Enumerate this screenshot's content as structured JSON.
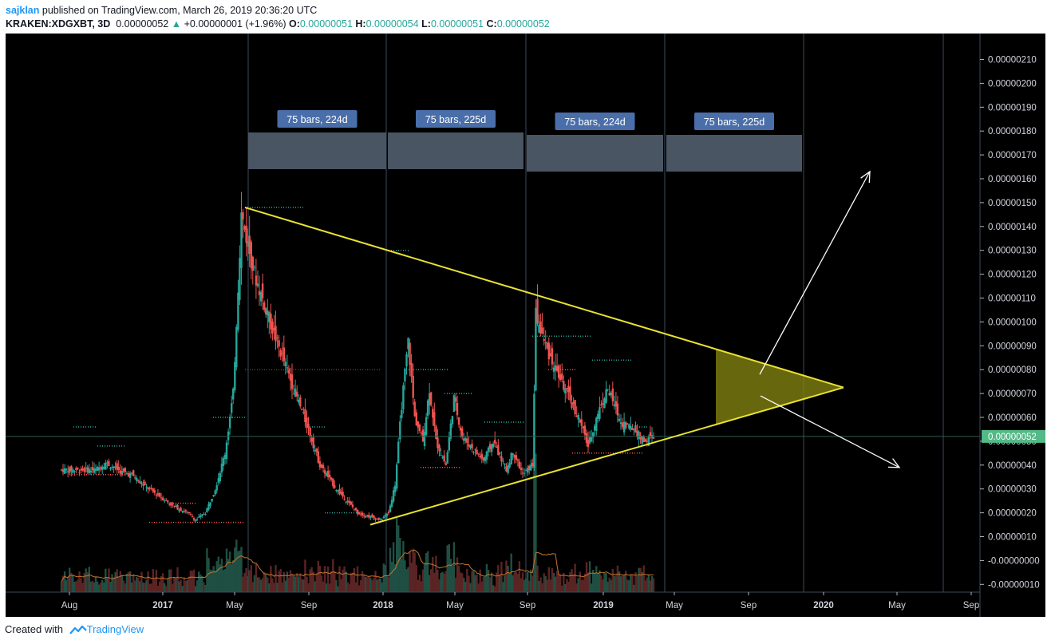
{
  "header": {
    "author": "sajklan",
    "published": "published on TradingView.com, March 26, 2019 20:36:20 UTC",
    "symbol": "KRAKEN:XDGXBT, 3D",
    "last": "0.00000052",
    "change": "+0.00000001 (+1.96%)",
    "o_label": "O:",
    "o": "0.00000051",
    "h_label": "H:",
    "h": "0.00000054",
    "l_label": "L:",
    "l": "0.00000051",
    "c_label": "C:",
    "c": "0.00000052"
  },
  "footer": {
    "created": "Created with",
    "brand": "TradingView"
  },
  "colors": {
    "background": "#000000",
    "up": "#26a69a",
    "down": "#ef5350",
    "trendline": "#e8e233",
    "wedge_fill": "#8a8a12",
    "price_tag": "#53b987",
    "box": "#4a5563",
    "box_label": "#4a6ea9",
    "arrow": "#ffffff",
    "ma": "#c8742b"
  },
  "chart_data": {
    "type": "candlestick",
    "ylim": [
      -2e-07,
      2.1e-06
    ],
    "y_ticks": [
      "0.00000210",
      "0.00000200",
      "0.00000190",
      "0.00000180",
      "0.00000170",
      "0.00000160",
      "0.00000150",
      "0.00000140",
      "0.00000130",
      "0.00000120",
      "0.00000110",
      "0.00000100",
      "0.00000090",
      "0.00000080",
      "0.00000070",
      "0.00000060",
      "0.00000050",
      "0.00000040",
      "0.00000030",
      "0.00000020",
      "0.00000010",
      "-0.00000000",
      "-0.00000010"
    ],
    "x_ticks": [
      "Aug",
      "2017",
      "May",
      "Sep",
      "2018",
      "May",
      "Sep",
      "2019",
      "May",
      "Sep",
      "2020",
      "May",
      "Sep"
    ],
    "current_price": "0.00000052",
    "price_path": [
      [
        3.8e-07,
        22
      ],
      [
        4.1e-07,
        6
      ],
      [
        3.7e-07,
        10
      ],
      [
        3.6e-07,
        6
      ],
      [
        3.1e-07,
        8
      ],
      [
        2.7e-07,
        9
      ],
      [
        2.3e-07,
        8
      ],
      [
        2e-07,
        9
      ],
      [
        1.7e-07,
        5
      ],
      [
        2e-07,
        6
      ],
      [
        3e-07,
        6
      ],
      [
        4.5e-07,
        6
      ],
      [
        7e-07,
        5
      ],
      [
        1.45e-06,
        5
      ],
      [
        1.2e-06,
        8
      ],
      [
        9.5e-07,
        12
      ],
      [
        7.2e-07,
        12
      ],
      [
        5.5e-07,
        9
      ],
      [
        4e-07,
        7
      ],
      [
        3e-07,
        10
      ],
      [
        2e-07,
        13
      ],
      [
        1.7e-07,
        14
      ],
      [
        2e-07,
        5
      ],
      [
        3.2e-07,
        4
      ],
      [
        6.5e-07,
        4
      ],
      [
        9.2e-07,
        4
      ],
      [
        6e-07,
        4
      ],
      [
        5e-07,
        5
      ],
      [
        7.2e-07,
        4
      ],
      [
        5e-07,
        4
      ],
      [
        4e-07,
        6
      ],
      [
        6.8e-07,
        5
      ],
      [
        5.2e-07,
        5
      ],
      [
        4.8e-07,
        5
      ],
      [
        4.2e-07,
        8
      ],
      [
        5e-07,
        6
      ],
      [
        3.8e-07,
        8
      ],
      [
        4.6e-07,
        4
      ],
      [
        3.6e-07,
        6
      ],
      [
        4e-07,
        6
      ],
      [
        1.03e-06,
        2
      ],
      [
        9e-07,
        6
      ],
      [
        8.2e-07,
        5
      ],
      [
        7e-07,
        8
      ],
      [
        6e-07,
        7
      ],
      [
        4.8e-07,
        6
      ],
      [
        6.2e-07,
        6
      ],
      [
        7.2e-07,
        6
      ],
      [
        5.8e-07,
        8
      ],
      [
        5.5e-07,
        8
      ],
      [
        5e-07,
        6
      ],
      [
        5.2e-07,
        6
      ]
    ],
    "annotations": [
      {
        "type": "measure",
        "label": "75 bars, 224d"
      },
      {
        "type": "measure",
        "label": "75 bars, 225d"
      },
      {
        "type": "measure",
        "label": "75 bars, 224d"
      },
      {
        "type": "measure",
        "label": "75 bars, 225d"
      },
      {
        "type": "trendline",
        "role": "upper",
        "from_price": 1.48e-06,
        "to_price": 7.25e-07
      },
      {
        "type": "trendline",
        "role": "lower",
        "from_price": 1.5e-07,
        "to_price": 7.25e-07
      },
      {
        "type": "arrow",
        "direction": "up",
        "from_price": 7.8e-07,
        "to_price": 1.63e-06
      },
      {
        "type": "arrow",
        "direction": "down",
        "from_price": 6.9e-07,
        "to_price": 3.9e-07
      }
    ]
  }
}
